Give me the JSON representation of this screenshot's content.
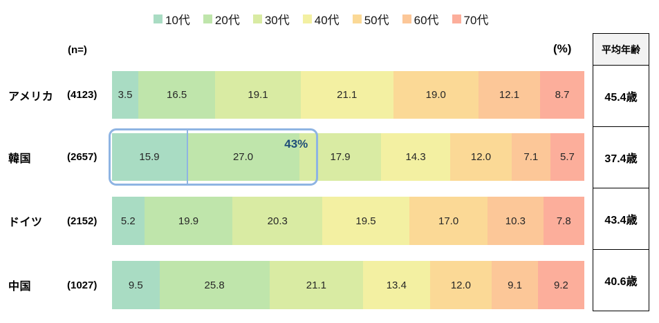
{
  "legend": {
    "items": [
      {
        "label": "10代",
        "color": "#a9dcc3"
      },
      {
        "label": "20代",
        "color": "#bfe5ab"
      },
      {
        "label": "30代",
        "color": "#d9eba3"
      },
      {
        "label": "40代",
        "color": "#f3f0a2"
      },
      {
        "label": "50代",
        "color": "#fbd996"
      },
      {
        "label": "60代",
        "color": "#fcc798"
      },
      {
        "label": "70代",
        "color": "#fcae9b"
      }
    ]
  },
  "labels": {
    "n_header": "(n=)",
    "percent": "(%)"
  },
  "avg_table": {
    "header": "平均年齢"
  },
  "chart_data": {
    "type": "bar",
    "orientation": "horizontal",
    "stacked": true,
    "unit": "%",
    "categories": [
      "アメリカ",
      "韓国",
      "ドイツ",
      "中国"
    ],
    "sample_sizes": [
      "(4123)",
      "(2657)",
      "(2152)",
      "(1027)"
    ],
    "series": [
      {
        "name": "10代",
        "color": "#a9dcc3",
        "values": [
          3.5,
          15.9,
          5.2,
          9.5
        ]
      },
      {
        "name": "20代",
        "color": "#bfe5ab",
        "values": [
          16.5,
          27.0,
          19.9,
          25.8
        ]
      },
      {
        "name": "30代",
        "color": "#d9eba3",
        "values": [
          19.1,
          17.9,
          20.3,
          21.1
        ]
      },
      {
        "name": "40代",
        "color": "#f3f0a2",
        "values": [
          21.1,
          14.3,
          19.5,
          13.4
        ]
      },
      {
        "name": "50代",
        "color": "#fbd996",
        "values": [
          19.0,
          12.0,
          17.0,
          12.0
        ]
      },
      {
        "name": "60代",
        "color": "#fcc798",
        "values": [
          12.1,
          7.1,
          10.3,
          9.1
        ]
      },
      {
        "name": "70代",
        "color": "#fcae9b",
        "values": [
          8.7,
          5.7,
          7.8,
          9.2
        ]
      }
    ],
    "average_age": [
      "45.4歳",
      "37.4歳",
      "43.4歳",
      "40.6歳"
    ],
    "highlight": {
      "row_index": 1,
      "series_span": [
        "10代",
        "20代"
      ],
      "label": "43%",
      "border_color": "#8eb4e3",
      "label_color": "#1f4e79"
    }
  }
}
